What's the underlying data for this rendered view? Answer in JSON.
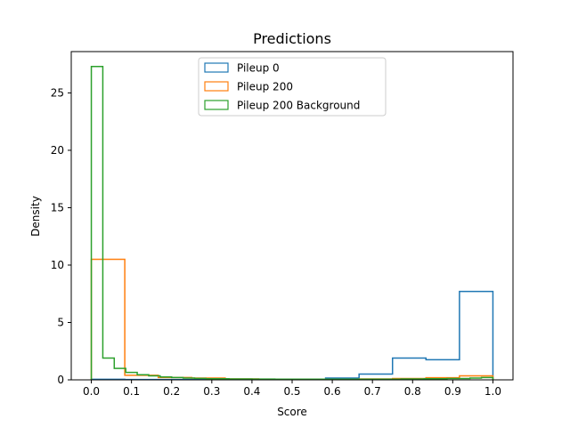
{
  "chart_data": {
    "type": "histogram-step",
    "title": "Predictions",
    "xlabel": "Score",
    "ylabel": "Density",
    "xlim": [
      -0.05,
      1.05
    ],
    "ylim": [
      0,
      28.6
    ],
    "xticks": [
      0.0,
      0.1,
      0.2,
      0.3,
      0.4,
      0.5,
      0.6,
      0.7,
      0.8,
      0.9,
      1.0
    ],
    "xtick_labels": [
      "0.0",
      "0.1",
      "0.2",
      "0.3",
      "0.4",
      "0.5",
      "0.6",
      "0.7",
      "0.8",
      "0.9",
      "1.0"
    ],
    "yticks": [
      0,
      5,
      10,
      15,
      20,
      25
    ],
    "ytick_labels": [
      "0",
      "5",
      "10",
      "15",
      "20",
      "25"
    ],
    "grid": false,
    "legend_position": "upper center",
    "series": [
      {
        "name": "Pileup 0",
        "color": "#1f77b4",
        "edges": [
          0.0,
          0.0833,
          0.1667,
          0.25,
          0.3333,
          0.4167,
          0.5,
          0.5833,
          0.6667,
          0.75,
          0.8333,
          0.9167,
          1.0
        ],
        "values": [
          0.05,
          0.03,
          0.03,
          0.03,
          0.05,
          0.05,
          0.05,
          0.15,
          0.5,
          1.9,
          1.75,
          7.7
        ]
      },
      {
        "name": "Pileup 200",
        "color": "#ff7f0e",
        "edges": [
          0.0,
          0.0833,
          0.1667,
          0.25,
          0.3333,
          0.4167,
          0.5,
          0.5833,
          0.6667,
          0.75,
          0.8333,
          0.9167,
          1.0
        ],
        "values": [
          10.5,
          0.4,
          0.2,
          0.15,
          0.08,
          0.06,
          0.06,
          0.06,
          0.08,
          0.12,
          0.18,
          0.35
        ]
      },
      {
        "name": "Pileup 200 Background",
        "color": "#2ca02c",
        "edges": [
          0.0,
          0.0286,
          0.0571,
          0.0857,
          0.1143,
          0.1429,
          0.1714,
          0.2,
          0.2286,
          0.2571,
          0.2857,
          0.3143,
          0.3429,
          0.3714,
          0.4,
          0.4286,
          0.4571,
          0.4857,
          0.5143,
          0.5429,
          0.5714,
          0.6,
          0.6286,
          0.6571,
          0.6857,
          0.7143,
          0.7429,
          0.7714,
          0.8,
          0.8286,
          0.8571,
          0.8857,
          0.9143,
          0.9429,
          0.9714,
          1.0
        ],
        "values": [
          27.3,
          1.9,
          1.0,
          0.65,
          0.45,
          0.35,
          0.25,
          0.2,
          0.15,
          0.13,
          0.1,
          0.1,
          0.08,
          0.08,
          0.07,
          0.07,
          0.06,
          0.06,
          0.06,
          0.06,
          0.06,
          0.06,
          0.06,
          0.06,
          0.06,
          0.06,
          0.06,
          0.08,
          0.08,
          0.1,
          0.1,
          0.12,
          0.12,
          0.15,
          0.2
        ]
      }
    ]
  }
}
